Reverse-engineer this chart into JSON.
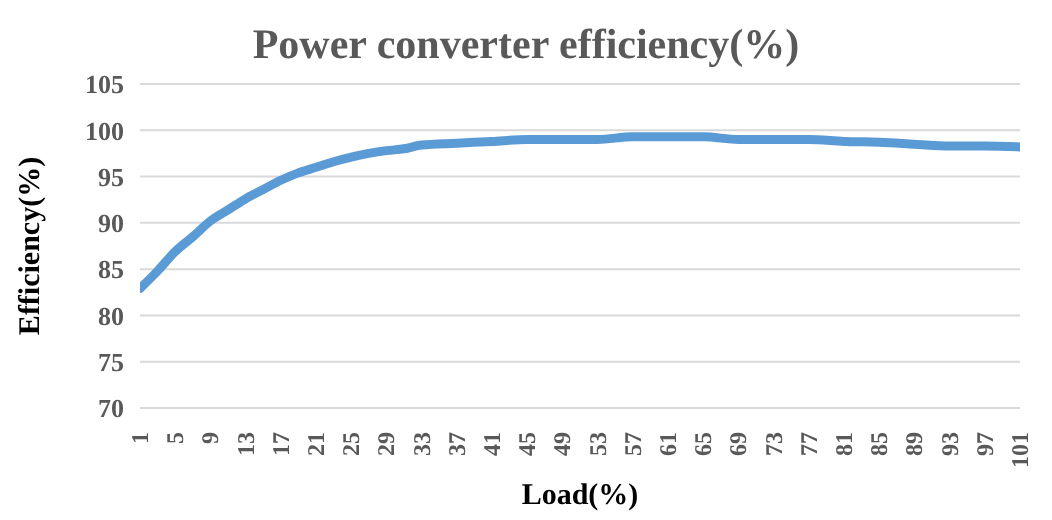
{
  "chart_data": {
    "type": "line",
    "title": "Power converter efficiency(%)",
    "xlabel": "Load(%)",
    "ylabel": "Efficiency(%)",
    "x": [
      1,
      3,
      5,
      7,
      9,
      11,
      13,
      15,
      17,
      19,
      21,
      23,
      25,
      27,
      29,
      31,
      33,
      37,
      41,
      45,
      53,
      57,
      65,
      69,
      77,
      81,
      85,
      89,
      93,
      97,
      101
    ],
    "series": [
      {
        "color": "#5b9bd5",
        "values": [
          82.9,
          84.8,
          86.9,
          88.5,
          90.2,
          91.4,
          92.6,
          93.6,
          94.6,
          95.4,
          96.0,
          96.6,
          97.1,
          97.5,
          97.8,
          98.0,
          98.4,
          98.6,
          98.8,
          99.0,
          99.0,
          99.3,
          99.3,
          99.0,
          99.0,
          98.8,
          98.7,
          98.5,
          98.3,
          98.3,
          98.2
        ]
      }
    ],
    "xlim": [
      1,
      101
    ],
    "xticks": [
      1,
      5,
      9,
      13,
      17,
      21,
      25,
      29,
      33,
      37,
      41,
      45,
      49,
      53,
      57,
      61,
      65,
      69,
      73,
      77,
      81,
      85,
      89,
      93,
      97,
      101
    ],
    "ylim": [
      70,
      105
    ],
    "yticks": [
      70,
      75,
      80,
      85,
      90,
      95,
      100,
      105
    ],
    "grid": "y",
    "legend": false,
    "marker": "none",
    "line_style": "solid"
  }
}
